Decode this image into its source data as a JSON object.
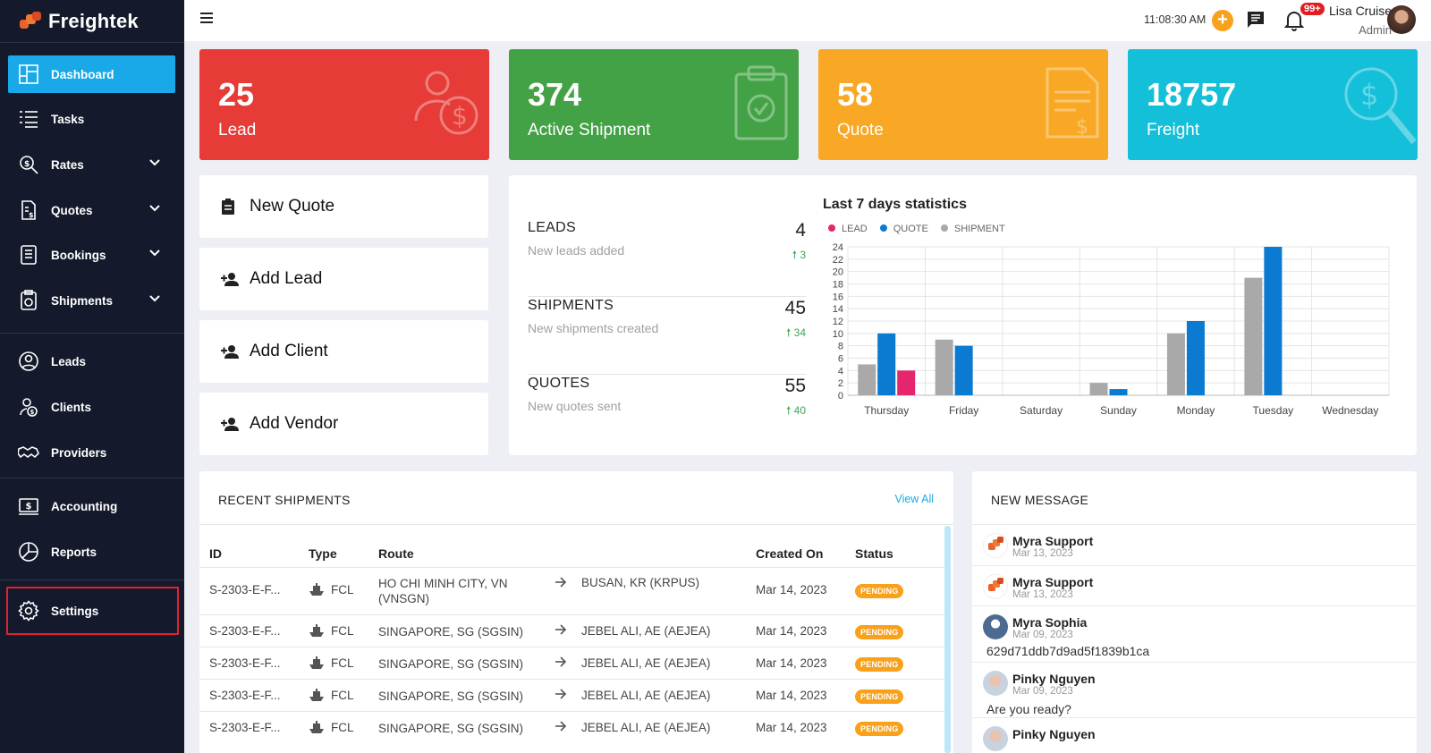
{
  "brand": {
    "name": "Freightek"
  },
  "sidebar": {
    "items": [
      {
        "label": "Dashboard",
        "icon": "dashboard-icon"
      },
      {
        "label": "Tasks",
        "icon": "tasks-icon"
      },
      {
        "label": "Rates",
        "icon": "rates-icon"
      },
      {
        "label": "Quotes",
        "icon": "quotes-icon"
      },
      {
        "label": "Bookings",
        "icon": "bookings-icon"
      },
      {
        "label": "Shipments",
        "icon": "shipments-icon"
      },
      {
        "label": "Leads",
        "icon": "leads-icon"
      },
      {
        "label": "Clients",
        "icon": "clients-icon"
      },
      {
        "label": "Providers",
        "icon": "providers-icon"
      },
      {
        "label": "Accounting",
        "icon": "accounting-icon"
      },
      {
        "label": "Reports",
        "icon": "reports-icon"
      },
      {
        "label": "Settings",
        "icon": "gear-icon"
      }
    ]
  },
  "topbar": {
    "time": "11:08:30 AM",
    "notif_badge": "99+",
    "user_name": "Lisa Cruise",
    "user_role": "Admin"
  },
  "stats": [
    {
      "value": "25",
      "label": "Lead",
      "color": "#e63b36"
    },
    {
      "value": "374",
      "label": "Active Shipment",
      "color": "#43a246"
    },
    {
      "value": "58",
      "label": "Quote",
      "color": "#f8a824"
    },
    {
      "value": "18757",
      "label": "Freight",
      "color": "#14c0d9"
    }
  ],
  "quick_actions": [
    "New Quote",
    "Add Lead",
    "Add Client",
    "Add Vendor"
  ],
  "summary": [
    {
      "title": "LEADS",
      "sub": "New leads added",
      "value": "4",
      "delta": "3"
    },
    {
      "title": "SHIPMENTS",
      "sub": "New shipments created",
      "value": "45",
      "delta": "34"
    },
    {
      "title": "QUOTES",
      "sub": "New quotes sent",
      "value": "55",
      "delta": "40"
    }
  ],
  "chart_data": {
    "type": "bar",
    "title": "Last 7 days statistics",
    "categories": [
      "Thursday",
      "Friday",
      "Saturday",
      "Sunday",
      "Monday",
      "Tuesday",
      "Wednesday"
    ],
    "series": [
      {
        "name": "LEAD",
        "color": "#e5266e",
        "values": [
          4,
          0,
          0,
          0,
          0,
          0,
          0
        ]
      },
      {
        "name": "QUOTE",
        "color": "#0a7bd1",
        "values": [
          10,
          8,
          0,
          1,
          12,
          24,
          0
        ]
      },
      {
        "name": "SHIPMENT",
        "color": "#a9a9a9",
        "values": [
          5,
          9,
          0,
          2,
          10,
          19,
          0
        ]
      }
    ],
    "ylim": [
      0,
      24
    ],
    "yticks": [
      0,
      2,
      4,
      6,
      8,
      10,
      12,
      14,
      16,
      18,
      20,
      22,
      24
    ],
    "grid": true,
    "legend": "top-left"
  },
  "recent_shipments": {
    "title": "RECENT SHIPMENTS",
    "view_all": "View All",
    "columns": [
      "ID",
      "Type",
      "Route",
      "Created On",
      "Status"
    ],
    "rows": [
      {
        "id": "S-2303-E-F...",
        "type": "FCL",
        "from": "HO CHI MINH CITY, VN (VNSGN)",
        "to": "BUSAN, KR (KRPUS)",
        "created": "Mar 14, 2023",
        "status": "PENDING"
      },
      {
        "id": "S-2303-E-F...",
        "type": "FCL",
        "from": "SINGAPORE, SG (SGSIN)",
        "to": "JEBEL ALI, AE (AEJEA)",
        "created": "Mar 14, 2023",
        "status": "PENDING"
      },
      {
        "id": "S-2303-E-F...",
        "type": "FCL",
        "from": "SINGAPORE, SG (SGSIN)",
        "to": "JEBEL ALI, AE (AEJEA)",
        "created": "Mar 14, 2023",
        "status": "PENDING"
      },
      {
        "id": "S-2303-E-F...",
        "type": "FCL",
        "from": "SINGAPORE, SG (SGSIN)",
        "to": "JEBEL ALI, AE (AEJEA)",
        "created": "Mar 14, 2023",
        "status": "PENDING"
      },
      {
        "id": "S-2303-E-F...",
        "type": "FCL",
        "from": "SINGAPORE, SG (SGSIN)",
        "to": "JEBEL ALI, AE (AEJEA)",
        "created": "Mar 14, 2023",
        "status": "PENDING"
      }
    ]
  },
  "messages": {
    "title": "NEW MESSAGE",
    "items": [
      {
        "name": "Myra Support",
        "date": "Mar 13, 2023",
        "text": ""
      },
      {
        "name": "Myra Support",
        "date": "Mar 13, 2023",
        "text": ""
      },
      {
        "name": "Myra Sophia",
        "date": "Mar 09, 2023",
        "text": "629d71ddb7d9ad5f1839b1ca"
      },
      {
        "name": "Pinky Nguyen",
        "date": "Mar 09, 2023",
        "text": "Are you ready?"
      },
      {
        "name": "Pinky Nguyen",
        "date": "",
        "text": ""
      }
    ]
  }
}
